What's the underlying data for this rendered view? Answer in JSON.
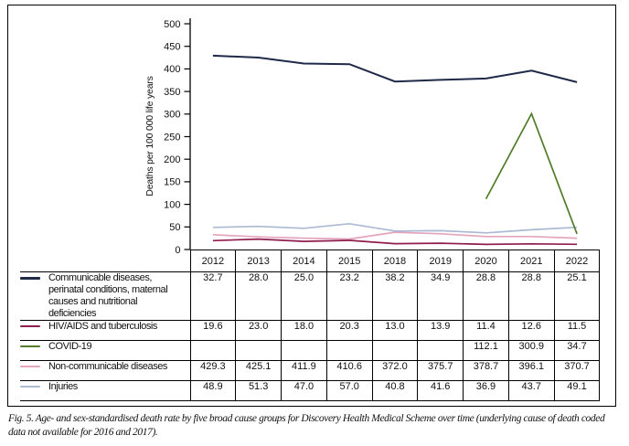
{
  "figure": {
    "caption": "Fig. 5. Age- and sex-standardised death rate by five broad cause groups for Discovery Health Medical Scheme over time (underlying cause of death coded data not available for 2016 and 2017)."
  },
  "chart_data": {
    "type": "line",
    "title": "",
    "xlabel": "",
    "ylabel": "Deaths per 100 000 life years",
    "categories": [
      "2012",
      "2013",
      "2014",
      "2015",
      "2018",
      "2019",
      "2020",
      "2021",
      "2022"
    ],
    "ylim": [
      0,
      500
    ],
    "yticks": [
      0,
      50,
      100,
      150,
      200,
      250,
      300,
      350,
      400,
      450,
      500
    ],
    "grid": false,
    "legend_position": "table-left-column",
    "series": [
      {
        "id": "communicable",
        "name": "Communicable diseases, perinatal conditions, maternal causes and nutritional deficiencies",
        "legend_color": "#1e2a47",
        "line_color": "#e4a4bc",
        "values": [
          32.7,
          28.0,
          25.0,
          23.2,
          38.2,
          34.9,
          28.8,
          28.8,
          25.1
        ]
      },
      {
        "id": "hiv-aids-tb",
        "name": "HIV/AIDS and tuberculosis",
        "legend_color": "#901d50",
        "line_color": "#901d50",
        "values": [
          19.6,
          23.0,
          18.0,
          20.3,
          13.0,
          13.9,
          11.4,
          12.6,
          11.5
        ]
      },
      {
        "id": "covid-19",
        "name": "COVID-19",
        "legend_color": "#507c2a",
        "line_color": "#507c2a",
        "values": [
          null,
          null,
          null,
          null,
          null,
          null,
          112.1,
          300.9,
          34.7
        ]
      },
      {
        "id": "non-communicable",
        "name": "Non-communicable diseases",
        "legend_color": "#e4a4bc",
        "line_color": "#1e2a47",
        "values": [
          429.3,
          425.1,
          411.9,
          410.6,
          372.0,
          375.7,
          378.7,
          396.1,
          370.7
        ]
      },
      {
        "id": "injuries",
        "name": "Injuries",
        "legend_color": "#abb9d3",
        "line_color": "#abb9d3",
        "values": [
          48.9,
          51.3,
          47.0,
          57.0,
          40.8,
          41.6,
          36.9,
          43.7,
          49.1
        ]
      }
    ]
  }
}
